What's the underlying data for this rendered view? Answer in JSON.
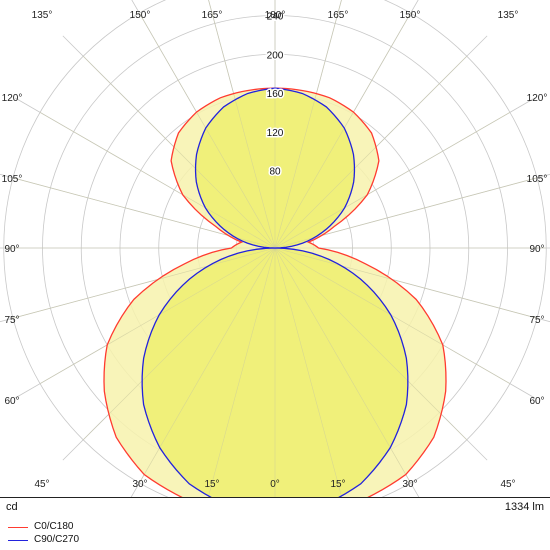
{
  "chart_data": {
    "type": "polar",
    "unit": "cd",
    "luminous_flux": "1334 lm",
    "radial_ticks": [
      80,
      120,
      160,
      200,
      240,
      280
    ],
    "rmax": 280,
    "angle_labels_top": [
      "135°",
      "150°",
      "165°",
      "180°",
      "165°",
      "150°",
      "135°"
    ],
    "angle_labels_side": [
      "120°",
      "105°",
      "90°",
      "75°",
      "60°"
    ],
    "angle_labels_bottom": [
      "45°",
      "30°",
      "15°",
      "0°",
      "15°",
      "30°",
      "45°"
    ],
    "colors": {
      "c0": "#ff3b30",
      "c90": "#2222dd",
      "fill": "#f0f07a",
      "fill_outer": "#f7f2ad",
      "grid": "#c8c8c8"
    },
    "series": [
      {
        "name": "C0/C180",
        "angles": [
          0,
          10,
          20,
          30,
          40,
          50,
          60,
          70,
          80,
          90,
          100,
          110,
          120,
          130,
          140,
          150,
          160,
          170,
          180
        ],
        "values": [
          275,
          276,
          275,
          270,
          255,
          230,
          200,
          155,
          95,
          45,
          35,
          65,
          110,
          140,
          155,
          162,
          165,
          165,
          165
        ]
      },
      {
        "name": "C90/C270",
        "angles": [
          0,
          10,
          20,
          30,
          40,
          50,
          60,
          70,
          80,
          90,
          100,
          110,
          120,
          130,
          140,
          150,
          160,
          170,
          180
        ],
        "values": [
          275,
          271,
          259,
          238,
          211,
          177,
          138,
          94,
          48,
          0,
          29,
          56,
          83,
          106,
          126,
          143,
          155,
          162,
          165
        ]
      }
    ]
  }
}
